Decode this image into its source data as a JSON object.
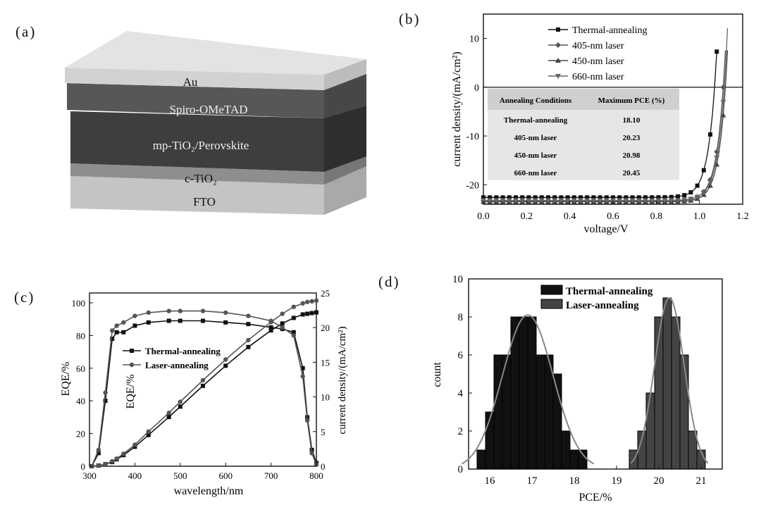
{
  "panels": {
    "a": "(a)",
    "b": "(b)",
    "c": "(c)",
    "d": "(d)"
  },
  "device_stack": {
    "layers": [
      "Au",
      "Spiro-OMeTAD",
      "mp-TiO₂/Perovskite",
      "c-TiO₂",
      "FTO"
    ]
  },
  "chart_data": [
    {
      "id": "b",
      "type": "line",
      "xlabel": "voltage/V",
      "ylabel": "current density/(mA/cm²)",
      "xlim": [
        0.0,
        1.2
      ],
      "ylim": [
        -24,
        15
      ],
      "xticks": [
        "0.0",
        "0.2",
        "0.4",
        "0.6",
        "0.8",
        "1.0",
        "1.2"
      ],
      "yticks": [
        "10",
        "0",
        "-10",
        "-20"
      ],
      "legend": [
        "Thermal-annealing",
        "405-nm laser",
        "450-nm laser",
        "660-nm laser"
      ],
      "series": [
        {
          "name": "Thermal-annealing",
          "jsc": -22.6,
          "voc": 1.07,
          "color": "#111111"
        },
        {
          "name": "405-nm laser",
          "jsc": -23.3,
          "voc": 1.11,
          "color": "#555555"
        },
        {
          "name": "450-nm laser",
          "jsc": -23.5,
          "voc": 1.12,
          "color": "#444444"
        },
        {
          "name": "660-nm laser",
          "jsc": -23.2,
          "voc": 1.115,
          "color": "#666666"
        }
      ],
      "table": {
        "headers": [
          "Annealing Conditions",
          "Maximum PCE (%)"
        ],
        "rows": [
          [
            "Thermal-annealing",
            "18.10"
          ],
          [
            "405-nm  laser",
            "20.23"
          ],
          [
            "450-nm  laser",
            "20.98"
          ],
          [
            "660-nm  laser",
            "20.45"
          ]
        ]
      }
    },
    {
      "id": "c",
      "type": "line",
      "xlabel": "wavelength/nm",
      "ylabel_left": "EQE/%",
      "ylabel_left_inner": "EQE/%",
      "ylabel_right": "current density/(mA/cm²)",
      "xlim": [
        300,
        800
      ],
      "ylim_left": [
        0,
        100
      ],
      "ylim_right": [
        0,
        25
      ],
      "xticks": [
        "300",
        "400",
        "500",
        "600",
        "700",
        "800"
      ],
      "yticks_left": [
        "0",
        "20",
        "40",
        "60",
        "80",
        "100"
      ],
      "yticks_right": [
        "0",
        "5",
        "10",
        "15",
        "20",
        "25"
      ],
      "legend": [
        "Thermal-annealing",
        "Laser-annealing"
      ],
      "x": [
        305,
        320,
        335,
        350,
        360,
        375,
        400,
        430,
        475,
        500,
        550,
        600,
        650,
        700,
        725,
        750,
        770,
        780,
        790,
        800
      ],
      "series": [
        {
          "name": "Thermal-annealing",
          "eqe": [
            0,
            8,
            40,
            78,
            82,
            82,
            86,
            88,
            89,
            89,
            89,
            88,
            87,
            85,
            84,
            82,
            60,
            30,
            10,
            2
          ],
          "jsc": [
            0,
            0.1,
            0.3,
            0.6,
            1.0,
            1.6,
            2.8,
            4.5,
            7.1,
            8.6,
            11.6,
            14.5,
            17.2,
            19.6,
            20.6,
            21.4,
            21.9,
            22.0,
            22.1,
            22.2
          ]
        },
        {
          "name": "Laser-annealing",
          "eqe": [
            0,
            10,
            45,
            83,
            86,
            88,
            92,
            94,
            95,
            95,
            95,
            94,
            92,
            89,
            85,
            80,
            55,
            28,
            8,
            1
          ],
          "jsc": [
            0,
            0.1,
            0.3,
            0.7,
            1.1,
            1.8,
            3.1,
            5.0,
            7.7,
            9.3,
            12.4,
            15.4,
            18.2,
            20.8,
            22.0,
            23.0,
            23.5,
            23.7,
            23.8,
            23.9
          ]
        }
      ]
    },
    {
      "id": "d",
      "type": "bar",
      "xlabel": "PCE/%",
      "ylabel": "count",
      "xlim": [
        15.5,
        21.5
      ],
      "ylim": [
        0,
        10
      ],
      "xticks": [
        "16",
        "17",
        "18",
        "19",
        "20",
        "21"
      ],
      "yticks": [
        "0",
        "2",
        "4",
        "6",
        "8",
        "10"
      ],
      "legend": [
        "Thermal-annealing",
        "Laser-annealing"
      ],
      "bin_width": 0.2,
      "series": [
        {
          "name": "Thermal-annealing",
          "color": "#111111",
          "bins": [
            15.8,
            16.0,
            16.2,
            16.4,
            16.6,
            16.8,
            17.0,
            17.2,
            17.4,
            17.6,
            17.8,
            18.0,
            18.2
          ],
          "counts": [
            1,
            3,
            6,
            6,
            8,
            8,
            8,
            6,
            6,
            5,
            2,
            1,
            1
          ],
          "fit_mean": 16.9,
          "fit_sigma": 0.6,
          "fit_peak": 8.1
        },
        {
          "name": "Laser-annealing",
          "color": "#444444",
          "bins": [
            19.4,
            19.6,
            19.8,
            20.0,
            20.2,
            20.4,
            20.6,
            20.8,
            21.0
          ],
          "counts": [
            1,
            2,
            4,
            8,
            9,
            8,
            6,
            2,
            1
          ],
          "fit_mean": 20.25,
          "fit_sigma": 0.35,
          "fit_peak": 9.0
        }
      ]
    }
  ]
}
